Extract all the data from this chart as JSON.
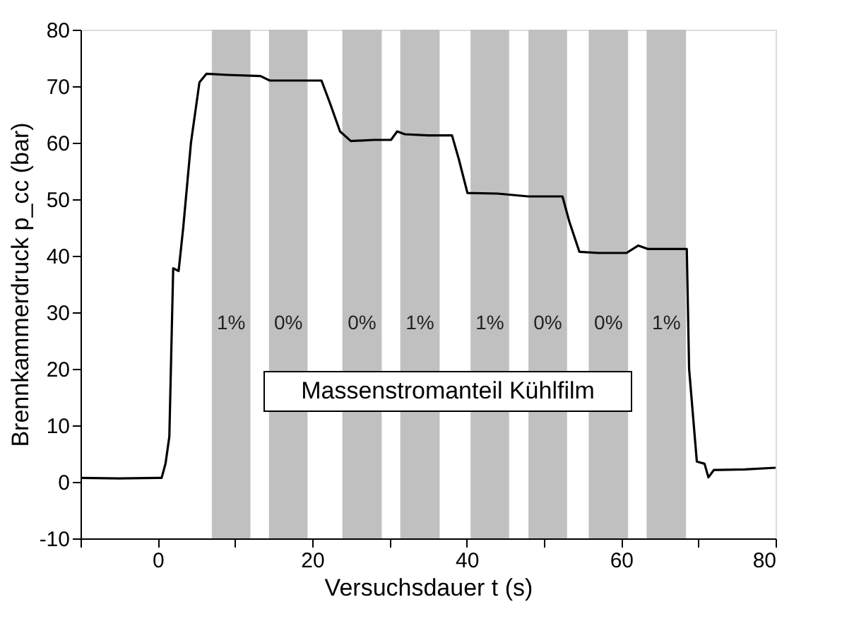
{
  "chart_data": {
    "type": "line",
    "xlabel": "Versuchsdauer t (s)",
    "ylabel": "Brennkammerdruck p_cc (bar)",
    "x": [
      -10,
      -5,
      0,
      0.5,
      1.0,
      1.5,
      2.0,
      2.7,
      3.3,
      4.3,
      5.4,
      6.3,
      9,
      13.3,
      14.5,
      18,
      21.2,
      22.3,
      23.6,
      25,
      28,
      30.2,
      31,
      32,
      35,
      38.1,
      39,
      40.1,
      44,
      48,
      52.4,
      53.3,
      54.6,
      57,
      60.7,
      62.2,
      63.5,
      66,
      68.5,
      68.8,
      69.8,
      70.8,
      71.3,
      72,
      76,
      80
    ],
    "series": [
      {
        "color": "#000000",
        "values": [
          0.7,
          0.6,
          0.7,
          0.7,
          3.2,
          8,
          37.8,
          37.3,
          45,
          60,
          70.7,
          72.2,
          72,
          71.8,
          71,
          71,
          71,
          67,
          62,
          60.3,
          60.5,
          60.5,
          62,
          61.5,
          61.3,
          61.3,
          57,
          51.1,
          51,
          50.5,
          50.5,
          46,
          40.7,
          40.5,
          40.5,
          41.8,
          41.2,
          41.2,
          41.2,
          20,
          3.6,
          3.2,
          0.8,
          2.1,
          2.2,
          2.5
        ]
      }
    ],
    "xlim": [
      -10,
      80
    ],
    "xticks": [
      {
        "value": -10,
        "label": null
      },
      0,
      {
        "value": 10,
        "label": null
      },
      20,
      {
        "value": 30,
        "label": null
      },
      40,
      {
        "value": 50,
        "label": null
      },
      60,
      {
        "value": 70,
        "label": null
      },
      80
    ],
    "ylim": [
      -10,
      80
    ],
    "yticks": [
      -10,
      0,
      10,
      20,
      30,
      40,
      50,
      60,
      70,
      80
    ],
    "bands": [
      {
        "axis": "x",
        "from": 7,
        "to": 12,
        "label": "1%",
        "color": "#c0c0c0"
      },
      {
        "axis": "x",
        "from": 14.4,
        "to": 19.4,
        "label": "0%",
        "color": "#c0c0c0"
      },
      {
        "axis": "x",
        "from": 23.9,
        "to": 29,
        "label": "0%",
        "color": "#c0c0c0"
      },
      {
        "axis": "x",
        "from": 31.4,
        "to": 36.5,
        "label": "1%",
        "color": "#c0c0c0"
      },
      {
        "axis": "x",
        "from": 40.5,
        "to": 45.5,
        "label": "1%",
        "color": "#c0c0c0"
      },
      {
        "axis": "x",
        "from": 48,
        "to": 53,
        "label": "0%",
        "color": "#c0c0c0"
      },
      {
        "axis": "x",
        "from": 55.8,
        "to": 60.9,
        "label": "0%",
        "color": "#c0c0c0"
      },
      {
        "axis": "x",
        "from": 63.3,
        "to": 68.4,
        "label": "1%",
        "color": "#c0c0c0"
      }
    ],
    "annotations": [
      "Massenstromanteil Kühlfilm"
    ],
    "grid": false,
    "marker": "none",
    "line_style": "solid"
  }
}
